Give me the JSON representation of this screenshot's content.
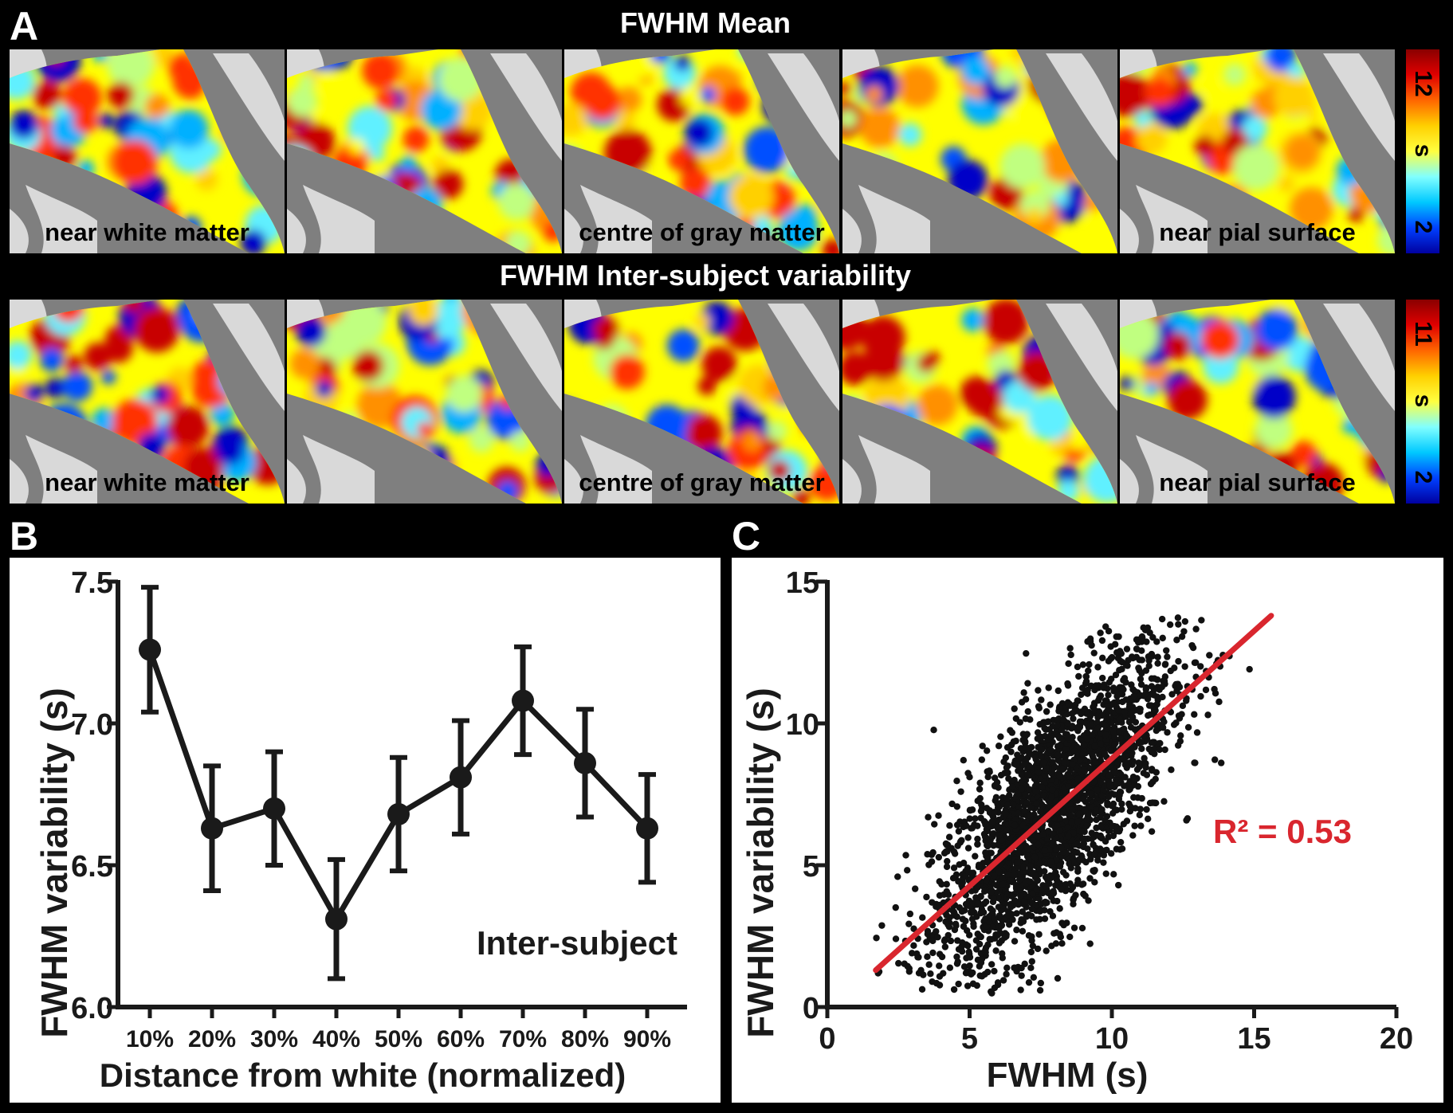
{
  "panel_a": {
    "letter": "A",
    "rows": [
      {
        "title": "FWHM Mean",
        "maps": [
          "near white matter",
          "",
          "centre of gray matter",
          "",
          "near pial surface"
        ],
        "colorbar": {
          "max": "12",
          "unit": "s",
          "min": "2"
        }
      },
      {
        "title": "FWHM Inter-subject variability",
        "maps": [
          "near white matter",
          "",
          "centre of gray matter",
          "",
          "near pial surface"
        ],
        "colorbar": {
          "max": "11",
          "unit": "s",
          "min": "2"
        }
      }
    ],
    "colors": {
      "low": "#0000c8",
      "mid": "#ffff00",
      "high": "#c80000",
      "background": "#7f7f7f",
      "sulci": "#d9d9d9"
    }
  },
  "panel_b": {
    "letter": "B"
  },
  "panel_c": {
    "letter": "C"
  },
  "chart_data": [
    {
      "type": "line",
      "categories": [
        "10%",
        "20%",
        "30%",
        "40%",
        "50%",
        "60%",
        "70%",
        "80%",
        "90%"
      ],
      "series": [
        {
          "values": [
            7.26,
            6.63,
            6.7,
            6.31,
            6.68,
            6.81,
            7.08,
            6.86,
            6.63
          ],
          "error": [
            0.22,
            0.22,
            0.2,
            0.21,
            0.2,
            0.2,
            0.19,
            0.19,
            0.19
          ]
        }
      ],
      "xlabel": "Distance from white (normalized)",
      "ylabel": "FWHM variability (s)",
      "ylim": [
        6.0,
        7.5
      ],
      "yticks": [
        "6.0",
        "6.5",
        "7.0",
        "7.5"
      ],
      "annotation": "Inter-subject",
      "grid": false,
      "color": "#1a1a1a"
    },
    {
      "type": "scatter",
      "xlabel": "FWHM (s)",
      "ylabel": "FWHM variability (s)",
      "xlim": [
        0,
        20
      ],
      "ylim": [
        0,
        15
      ],
      "xticks": [
        "0",
        "5",
        "10",
        "15",
        "20"
      ],
      "yticks": [
        "0",
        "5",
        "10",
        "15"
      ],
      "fit": {
        "x": [
          1.7,
          15.6
        ],
        "y": [
          1.3,
          13.8
        ],
        "color": "#d9262e"
      },
      "annotation": "R² = 0.53",
      "cloud": {
        "n": 2600,
        "x_mean": 7.9,
        "x_sd": 2.1,
        "y_mean": 6.9,
        "y_sd": 2.9,
        "r": 0.73,
        "x_range": [
          1.7,
          15.7
        ],
        "y_range": [
          0.4,
          13.8
        ]
      },
      "grid": false,
      "point_color": "#111111"
    }
  ]
}
